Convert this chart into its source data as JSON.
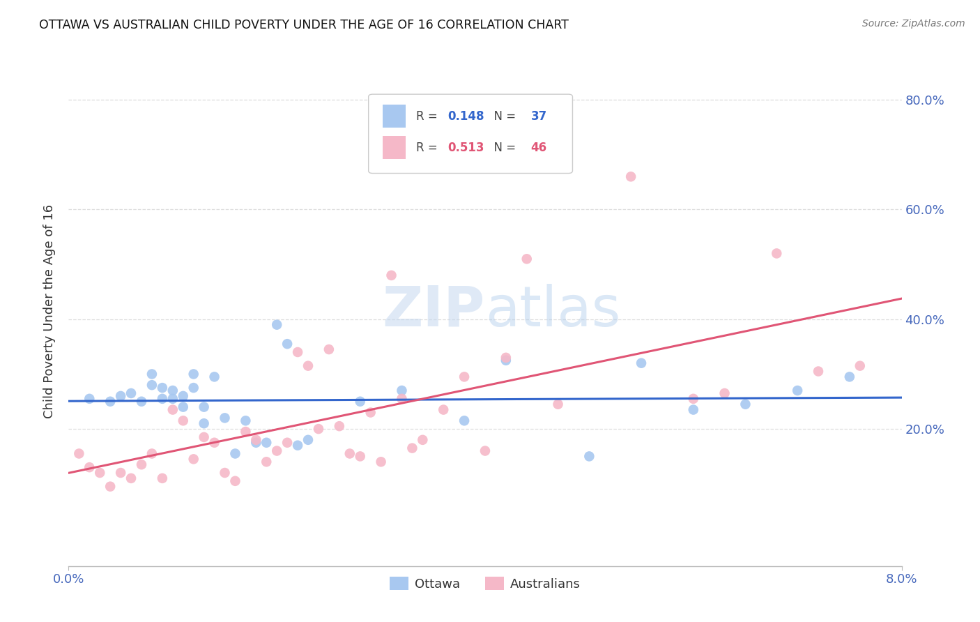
{
  "title": "OTTAWA VS AUSTRALIAN CHILD POVERTY UNDER THE AGE OF 16 CORRELATION CHART",
  "source": "Source: ZipAtlas.com",
  "ylabel_label": "Child Poverty Under the Age of 16",
  "xlim": [
    0.0,
    0.08
  ],
  "ylim": [
    -0.05,
    0.88
  ],
  "ottawa_R": "0.148",
  "ottawa_N": "37",
  "aus_R": "0.513",
  "aus_N": "46",
  "ottawa_color": "#a8c8f0",
  "aus_color": "#f5b8c8",
  "ottawa_line_color": "#3366cc",
  "aus_line_color": "#e05575",
  "background_color": "#ffffff",
  "grid_color": "#dddddd",
  "tick_color": "#4466bb",
  "title_color": "#111111",
  "ylabel_color": "#333333",
  "source_color": "#777777",
  "watermark_color": "#dce8f5",
  "ottawa_x": [
    0.002,
    0.004,
    0.005,
    0.006,
    0.007,
    0.008,
    0.008,
    0.009,
    0.009,
    0.01,
    0.01,
    0.011,
    0.011,
    0.012,
    0.012,
    0.013,
    0.013,
    0.014,
    0.015,
    0.016,
    0.017,
    0.018,
    0.019,
    0.02,
    0.021,
    0.022,
    0.023,
    0.028,
    0.032,
    0.038,
    0.042,
    0.05,
    0.055,
    0.06,
    0.065,
    0.07,
    0.075
  ],
  "ottawa_y": [
    0.255,
    0.25,
    0.26,
    0.265,
    0.25,
    0.28,
    0.3,
    0.255,
    0.275,
    0.27,
    0.255,
    0.26,
    0.24,
    0.275,
    0.3,
    0.21,
    0.24,
    0.295,
    0.22,
    0.155,
    0.215,
    0.175,
    0.175,
    0.39,
    0.355,
    0.17,
    0.18,
    0.25,
    0.27,
    0.215,
    0.325,
    0.15,
    0.32,
    0.235,
    0.245,
    0.27,
    0.295
  ],
  "aus_x": [
    0.001,
    0.002,
    0.003,
    0.004,
    0.005,
    0.006,
    0.007,
    0.008,
    0.009,
    0.01,
    0.011,
    0.012,
    0.013,
    0.014,
    0.015,
    0.016,
    0.017,
    0.018,
    0.019,
    0.02,
    0.021,
    0.022,
    0.023,
    0.024,
    0.025,
    0.026,
    0.027,
    0.028,
    0.029,
    0.03,
    0.031,
    0.032,
    0.033,
    0.034,
    0.036,
    0.038,
    0.04,
    0.042,
    0.044,
    0.047,
    0.054,
    0.06,
    0.063,
    0.068,
    0.072,
    0.076
  ],
  "aus_y": [
    0.155,
    0.13,
    0.12,
    0.095,
    0.12,
    0.11,
    0.135,
    0.155,
    0.11,
    0.235,
    0.215,
    0.145,
    0.185,
    0.175,
    0.12,
    0.105,
    0.195,
    0.18,
    0.14,
    0.16,
    0.175,
    0.34,
    0.315,
    0.2,
    0.345,
    0.205,
    0.155,
    0.15,
    0.23,
    0.14,
    0.48,
    0.255,
    0.165,
    0.18,
    0.235,
    0.295,
    0.16,
    0.33,
    0.51,
    0.245,
    0.66,
    0.255,
    0.265,
    0.52,
    0.305,
    0.315
  ],
  "yticks": [
    0.2,
    0.4,
    0.6,
    0.8
  ],
  "ytick_labels": [
    "20.0%",
    "40.0%",
    "60.0%",
    "80.0%"
  ],
  "xtick_labels": [
    "0.0%",
    "8.0%"
  ]
}
